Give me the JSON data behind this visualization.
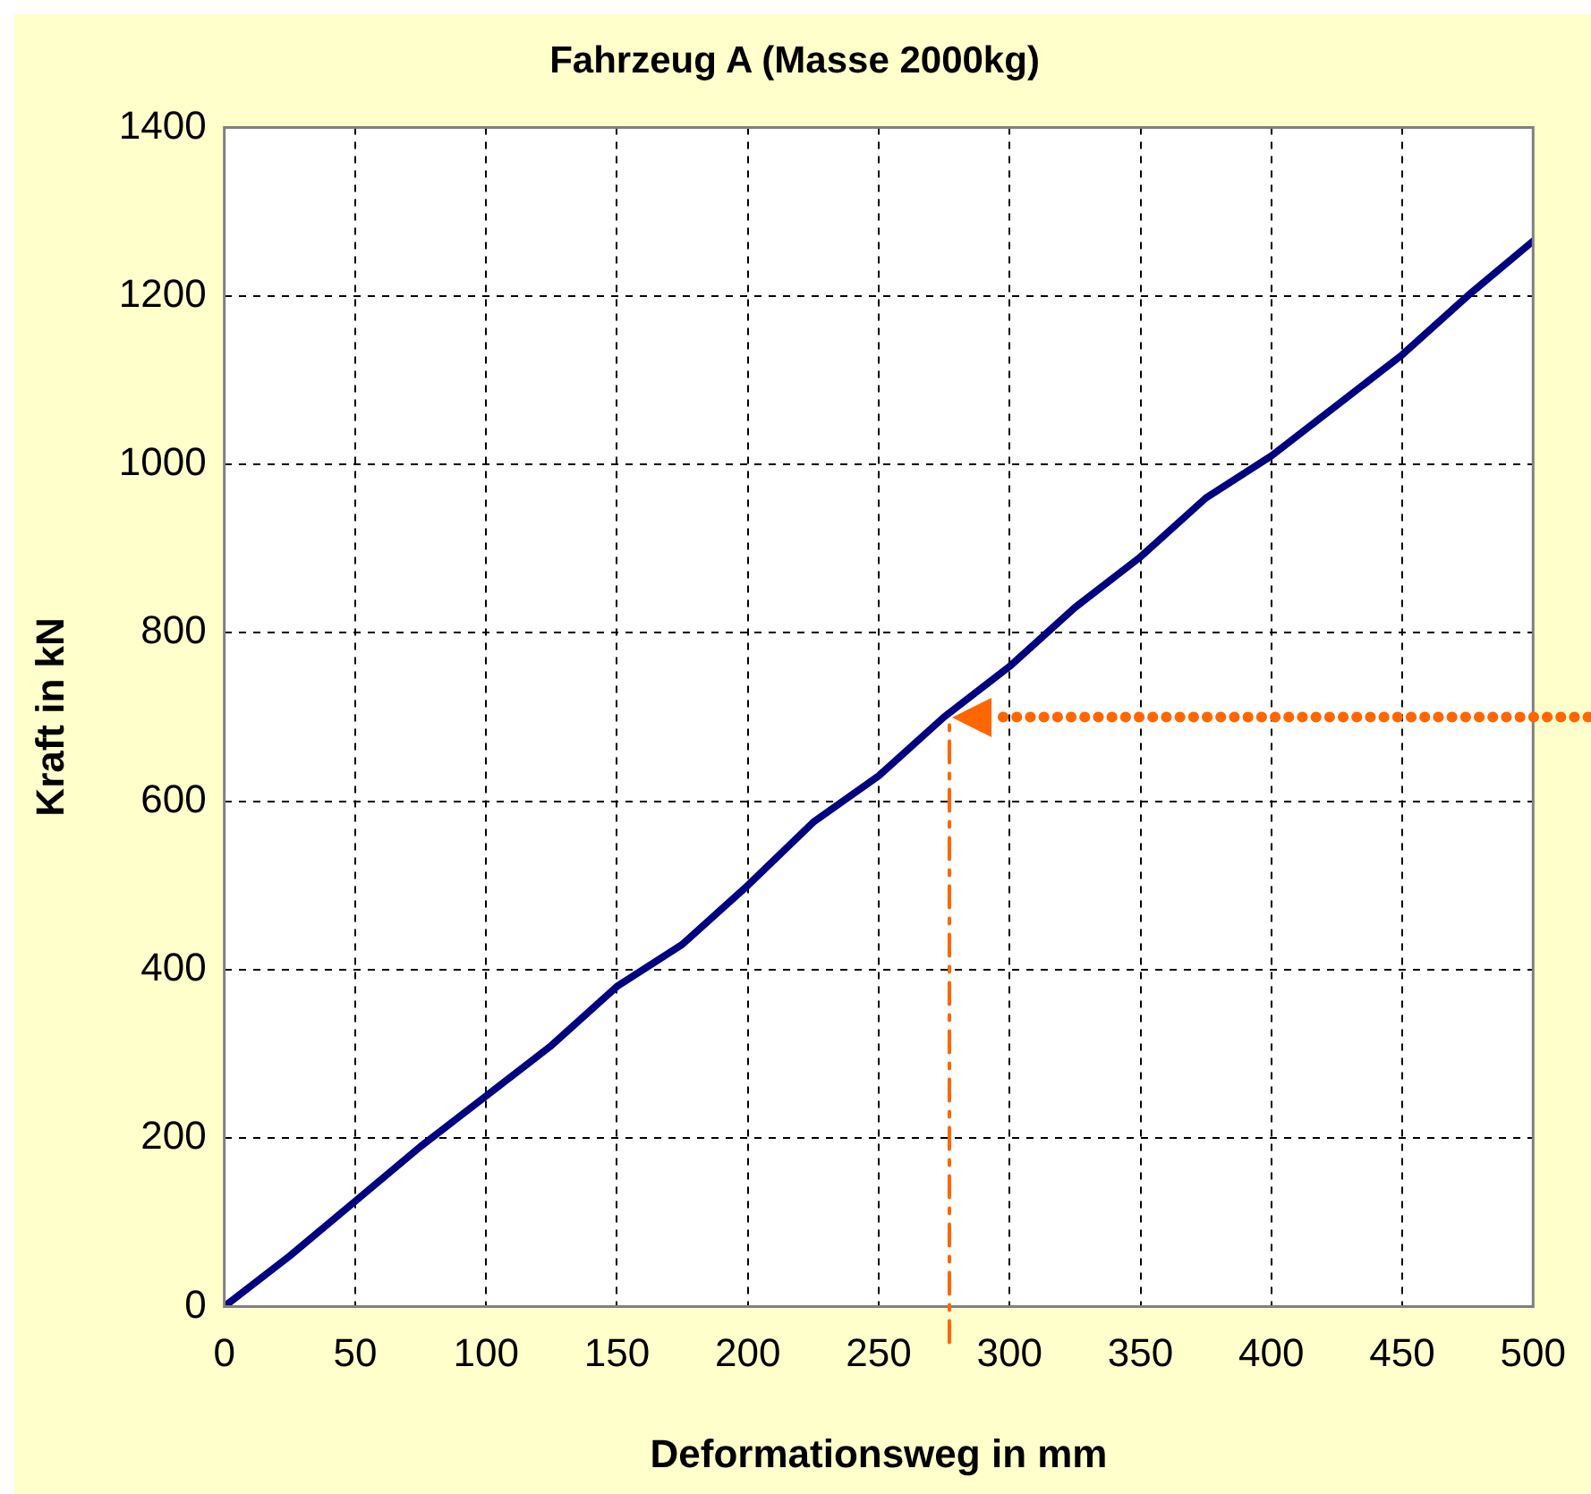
{
  "chart_data": {
    "type": "line",
    "title": "Fahrzeug A (Masse 2000kg)",
    "xlabel": "Deformationsweg in mm",
    "ylabel": "Kraft in kN",
    "x": [
      0,
      25,
      50,
      75,
      100,
      125,
      150,
      175,
      200,
      225,
      250,
      275,
      300,
      325,
      350,
      375,
      400,
      425,
      450,
      475,
      500
    ],
    "series": [
      {
        "color": "#000080",
        "values": [
          0,
          60,
          125,
          190,
          250,
          310,
          380,
          430,
          500,
          575,
          630,
          700,
          760,
          830,
          890,
          960,
          1010,
          1070,
          1130,
          1200,
          1265
        ]
      }
    ],
    "xlim": [
      0,
      500
    ],
    "xticks": [
      0,
      50,
      100,
      150,
      200,
      250,
      300,
      350,
      400,
      450,
      500
    ],
    "ylim": [
      0,
      1400
    ],
    "yticks": [
      0,
      200,
      400,
      600,
      800,
      1000,
      1200,
      1400
    ],
    "ref_lines": [
      {
        "axis": "x",
        "value": 277,
        "color": "#ff6600",
        "line_style": "dashed"
      },
      {
        "axis": "y",
        "value": 700,
        "color": "#ff6600",
        "line_style": "dotted"
      }
    ],
    "grid": true,
    "legend": false,
    "marker": "none",
    "line_style": "solid"
  }
}
